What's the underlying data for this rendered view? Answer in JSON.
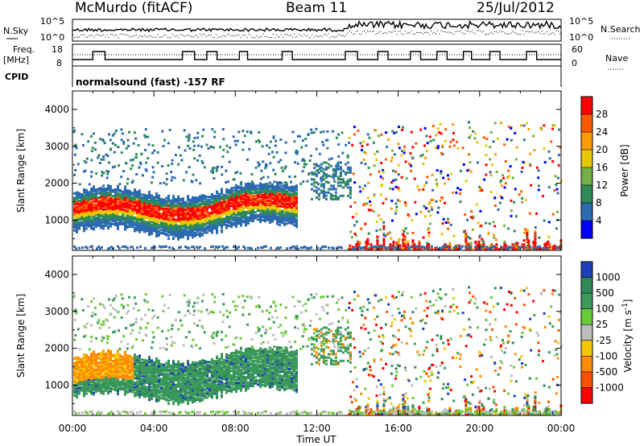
{
  "header": {
    "station": "McMurdo (fitACF)",
    "beam": "Beam 11",
    "date": "25/Jul/2012"
  },
  "top_panels": {
    "nsky_label": "N.Sky",
    "nsearch_label": "N.Search",
    "nsky_ticks": [
      "10^5",
      "10^0"
    ],
    "nsky_right_ticks": [
      "10^5",
      "10^0"
    ],
    "freq_label_1": "Freq.",
    "freq_label_2": "[MHz]",
    "freq_ticks": [
      "18",
      "8"
    ],
    "nave_ticks": [
      "60",
      "0"
    ],
    "nave_label": "Nave",
    "cpid_label": "CPID",
    "cpid_text": "normalsound (fast) -157 RF"
  },
  "time_axis": {
    "ticks": [
      "00:00",
      "04:00",
      "08:00",
      "12:00",
      "16:00",
      "20:00",
      "00:00"
    ],
    "label": "Time UT"
  },
  "chart_data": [
    {
      "type": "heatmap",
      "name": "power",
      "ylabel": "Slant Range [km]",
      "yticks": [
        1000,
        2000,
        3000,
        4000
      ],
      "ylim": [
        180,
        4500
      ],
      "xlim_hours": [
        0,
        24
      ],
      "colorbar_label": "Power [dB]",
      "colorbar_ticks": [
        "28",
        "24",
        "20",
        "16",
        "12",
        "8",
        "4"
      ],
      "colorbar_colors": [
        "#ff0000",
        "#ff5a00",
        "#ff9a00",
        "#e8c800",
        "#74b043",
        "#2e8b57",
        "#2d6bb0",
        "#0000ff"
      ]
    },
    {
      "type": "heatmap",
      "name": "velocity",
      "ylabel": "Slant Range [km]",
      "yticks": [
        1000,
        2000,
        3000,
        4000
      ],
      "ylim": [
        180,
        4500
      ],
      "xlim_hours": [
        0,
        24
      ],
      "colorbar_label": "Velocity [m s",
      "colorbar_label_sup": "-1",
      "colorbar_label_end": "]",
      "colorbar_ticks": [
        "1000",
        "500",
        "100",
        "25",
        "-25",
        "-100",
        "-500",
        "-1000"
      ],
      "colorbar_colors": [
        "#1f3fbf",
        "#2f8a57",
        "#3c9a5c",
        "#66cc33",
        "#bdbdbd",
        "#f2c600",
        "#ff8c00",
        "#ff5000",
        "#ff0000"
      ]
    }
  ]
}
